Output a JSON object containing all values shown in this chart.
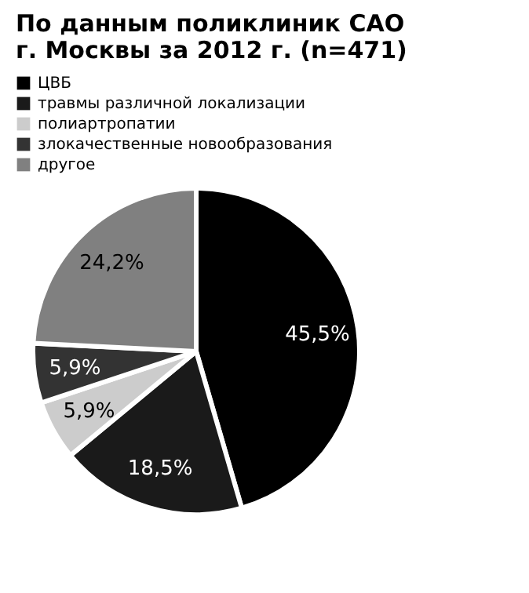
{
  "chart_data": {
    "type": "pie",
    "title": "По данным поликлиник САО\nг. Москвы за 2012 г. (n=471)",
    "categories": [
      "ЦВБ",
      "травмы различной локализации",
      "полиартропатии",
      "злокачественные новообразования",
      "другое"
    ],
    "values": [
      45.5,
      18.5,
      5.9,
      5.9,
      24.2
    ],
    "value_labels": [
      "45,5%",
      "18,5%",
      "5,9%",
      "5,9%",
      "24,2%"
    ],
    "colors": [
      "#000000",
      "#1a1a1a",
      "#cccccc",
      "#333333",
      "#808080"
    ],
    "legend": "top left"
  }
}
